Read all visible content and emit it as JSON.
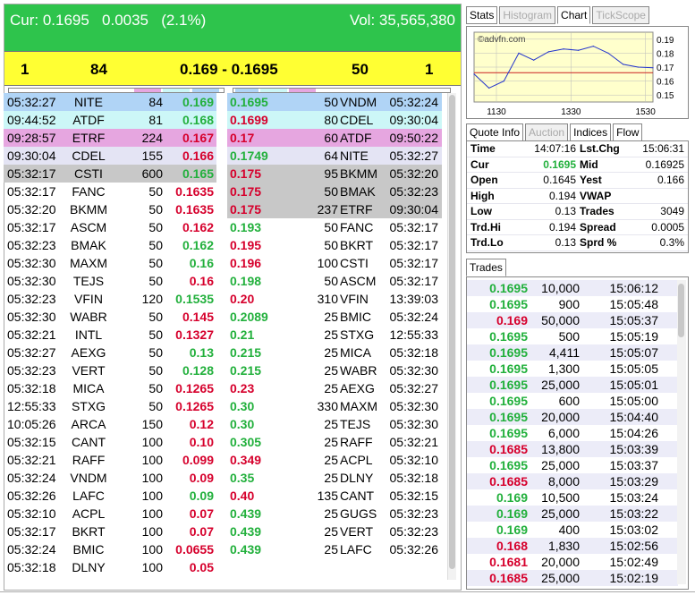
{
  "header": {
    "cur_label": "Cur: 0.1695",
    "change": "0.0035",
    "change_pct": "(2.1%)",
    "volume": "Vol: 35,565,380"
  },
  "best": {
    "bid_count": "1",
    "bid_size": "84",
    "spread": "0.169 - 0.1695",
    "ask_size": "50",
    "ask_count": "1"
  },
  "colors": {
    "header_bg": "#2ec44c",
    "best_bg": "#ffff33",
    "up": "#22b03c",
    "down": "#d6002c",
    "level1": "#b0d4f6",
    "level2": "#ccf7f7",
    "level3": "#e6a6e0",
    "level4": "#e4e4f4",
    "level5": "#c8c8c8"
  },
  "bids": [
    {
      "time": "05:32:27",
      "mm": "NITE",
      "size": "84",
      "price": "0.169",
      "dir": "g",
      "lvl": "level1"
    },
    {
      "time": "09:44:52",
      "mm": "ATDF",
      "size": "81",
      "price": "0.168",
      "dir": "g",
      "lvl": "level2"
    },
    {
      "time": "09:28:57",
      "mm": "ETRF",
      "size": "224",
      "price": "0.167",
      "dir": "r",
      "lvl": "level3"
    },
    {
      "time": "09:30:04",
      "mm": "CDEL",
      "size": "155",
      "price": "0.166",
      "dir": "r",
      "lvl": "level4"
    },
    {
      "time": "05:32:17",
      "mm": "CSTI",
      "size": "600",
      "price": "0.165",
      "dir": "g",
      "lvl": "level5"
    },
    {
      "time": "05:32:17",
      "mm": "FANC",
      "size": "50",
      "price": "0.1635",
      "dir": "r",
      "lvl": ""
    },
    {
      "time": "05:32:20",
      "mm": "BKMM",
      "size": "50",
      "price": "0.1635",
      "dir": "r",
      "lvl": ""
    },
    {
      "time": "05:32:17",
      "mm": "ASCM",
      "size": "50",
      "price": "0.162",
      "dir": "r",
      "lvl": ""
    },
    {
      "time": "05:32:23",
      "mm": "BMAK",
      "size": "50",
      "price": "0.162",
      "dir": "g",
      "lvl": ""
    },
    {
      "time": "05:32:30",
      "mm": "MAXM",
      "size": "50",
      "price": "0.16",
      "dir": "g",
      "lvl": ""
    },
    {
      "time": "05:32:30",
      "mm": "TEJS",
      "size": "50",
      "price": "0.16",
      "dir": "r",
      "lvl": ""
    },
    {
      "time": "05:32:23",
      "mm": "VFIN",
      "size": "120",
      "price": "0.1535",
      "dir": "g",
      "lvl": ""
    },
    {
      "time": "05:32:30",
      "mm": "WABR",
      "size": "50",
      "price": "0.145",
      "dir": "r",
      "lvl": ""
    },
    {
      "time": "05:32:21",
      "mm": "INTL",
      "size": "50",
      "price": "0.1327",
      "dir": "r",
      "lvl": ""
    },
    {
      "time": "05:32:27",
      "mm": "AEXG",
      "size": "50",
      "price": "0.13",
      "dir": "g",
      "lvl": ""
    },
    {
      "time": "05:32:23",
      "mm": "VERT",
      "size": "50",
      "price": "0.128",
      "dir": "g",
      "lvl": ""
    },
    {
      "time": "05:32:18",
      "mm": "MICA",
      "size": "50",
      "price": "0.1265",
      "dir": "r",
      "lvl": ""
    },
    {
      "time": "12:55:33",
      "mm": "STXG",
      "size": "50",
      "price": "0.1265",
      "dir": "r",
      "lvl": ""
    },
    {
      "time": "10:05:26",
      "mm": "ARCA",
      "size": "150",
      "price": "0.12",
      "dir": "r",
      "lvl": ""
    },
    {
      "time": "05:32:15",
      "mm": "CANT",
      "size": "100",
      "price": "0.10",
      "dir": "r",
      "lvl": ""
    },
    {
      "time": "05:32:21",
      "mm": "RAFF",
      "size": "100",
      "price": "0.099",
      "dir": "r",
      "lvl": ""
    },
    {
      "time": "05:32:24",
      "mm": "VNDM",
      "size": "100",
      "price": "0.09",
      "dir": "r",
      "lvl": ""
    },
    {
      "time": "05:32:26",
      "mm": "LAFC",
      "size": "100",
      "price": "0.09",
      "dir": "g",
      "lvl": ""
    },
    {
      "time": "05:32:10",
      "mm": "ACPL",
      "size": "100",
      "price": "0.07",
      "dir": "r",
      "lvl": ""
    },
    {
      "time": "05:32:17",
      "mm": "BKRT",
      "size": "100",
      "price": "0.07",
      "dir": "r",
      "lvl": ""
    },
    {
      "time": "05:32:24",
      "mm": "BMIC",
      "size": "100",
      "price": "0.0655",
      "dir": "r",
      "lvl": ""
    },
    {
      "time": "05:32:18",
      "mm": "DLNY",
      "size": "100",
      "price": "0.05",
      "dir": "r",
      "lvl": ""
    }
  ],
  "asks": [
    {
      "price": "0.1695",
      "size": "50",
      "mm": "VNDM",
      "time": "05:32:24",
      "dir": "g",
      "lvl": "level1"
    },
    {
      "price": "0.1699",
      "size": "80",
      "mm": "CDEL",
      "time": "09:30:04",
      "dir": "r",
      "lvl": "level2"
    },
    {
      "price": "0.17",
      "size": "60",
      "mm": "ATDF",
      "time": "09:50:22",
      "dir": "r",
      "lvl": "level3"
    },
    {
      "price": "0.1749",
      "size": "64",
      "mm": "NITE",
      "time": "05:32:27",
      "dir": "g",
      "lvl": "level4"
    },
    {
      "price": "0.175",
      "size": "95",
      "mm": "BKMM",
      "time": "05:32:20",
      "dir": "r",
      "lvl": "level5"
    },
    {
      "price": "0.175",
      "size": "50",
      "mm": "BMAK",
      "time": "05:32:23",
      "dir": "r",
      "lvl": "level5"
    },
    {
      "price": "0.175",
      "size": "237",
      "mm": "ETRF",
      "time": "09:30:04",
      "dir": "r",
      "lvl": "level5"
    },
    {
      "price": "0.193",
      "size": "50",
      "mm": "FANC",
      "time": "05:32:17",
      "dir": "g",
      "lvl": ""
    },
    {
      "price": "0.195",
      "size": "50",
      "mm": "BKRT",
      "time": "05:32:17",
      "dir": "r",
      "lvl": ""
    },
    {
      "price": "0.196",
      "size": "100",
      "mm": "CSTI",
      "time": "05:32:17",
      "dir": "r",
      "lvl": ""
    },
    {
      "price": "0.198",
      "size": "50",
      "mm": "ASCM",
      "time": "05:32:17",
      "dir": "g",
      "lvl": ""
    },
    {
      "price": "0.20",
      "size": "310",
      "mm": "VFIN",
      "time": "13:39:03",
      "dir": "r",
      "lvl": ""
    },
    {
      "price": "0.2089",
      "size": "25",
      "mm": "BMIC",
      "time": "05:32:24",
      "dir": "g",
      "lvl": ""
    },
    {
      "price": "0.21",
      "size": "25",
      "mm": "STXG",
      "time": "12:55:33",
      "dir": "g",
      "lvl": ""
    },
    {
      "price": "0.215",
      "size": "25",
      "mm": "MICA",
      "time": "05:32:18",
      "dir": "g",
      "lvl": ""
    },
    {
      "price": "0.215",
      "size": "25",
      "mm": "WABR",
      "time": "05:32:30",
      "dir": "g",
      "lvl": ""
    },
    {
      "price": "0.23",
      "size": "25",
      "mm": "AEXG",
      "time": "05:32:27",
      "dir": "r",
      "lvl": ""
    },
    {
      "price": "0.30",
      "size": "330",
      "mm": "MAXM",
      "time": "05:32:30",
      "dir": "g",
      "lvl": ""
    },
    {
      "price": "0.30",
      "size": "25",
      "mm": "TEJS",
      "time": "05:32:30",
      "dir": "g",
      "lvl": ""
    },
    {
      "price": "0.305",
      "size": "25",
      "mm": "RAFF",
      "time": "05:32:21",
      "dir": "g",
      "lvl": ""
    },
    {
      "price": "0.349",
      "size": "25",
      "mm": "ACPL",
      "time": "05:32:10",
      "dir": "r",
      "lvl": ""
    },
    {
      "price": "0.35",
      "size": "25",
      "mm": "DLNY",
      "time": "05:32:18",
      "dir": "g",
      "lvl": ""
    },
    {
      "price": "0.40",
      "size": "135",
      "mm": "CANT",
      "time": "05:32:15",
      "dir": "r",
      "lvl": ""
    },
    {
      "price": "0.439",
      "size": "25",
      "mm": "GUGS",
      "time": "05:32:23",
      "dir": "g",
      "lvl": ""
    },
    {
      "price": "0.439",
      "size": "25",
      "mm": "VERT",
      "time": "05:32:23",
      "dir": "g",
      "lvl": ""
    },
    {
      "price": "0.439",
      "size": "25",
      "mm": "LAFC",
      "time": "05:32:26",
      "dir": "g",
      "lvl": ""
    }
  ],
  "right_tabs": [
    {
      "label": "Stats",
      "state": "normal"
    },
    {
      "label": "Histogram",
      "state": "dis"
    },
    {
      "label": "Chart",
      "state": "act"
    },
    {
      "label": "TickScope",
      "state": "dis"
    }
  ],
  "chart": {
    "watermark": "©advfn.com",
    "y_ticks": [
      "0.19",
      "0.18",
      "0.17",
      "0.16",
      "0.15"
    ],
    "x_ticks": [
      "1130",
      "1330",
      "1530"
    ],
    "reference_line": 0.166,
    "colors": {
      "line": "#2233cc",
      "bg": "#ffffcc",
      "ref": "#cc2222",
      "grid": "#bbbbbb"
    }
  },
  "chart_data": {
    "type": "line",
    "x": [
      "0930",
      "1000",
      "1030",
      "1100",
      "1130",
      "1200",
      "1230",
      "1300",
      "1330",
      "1400",
      "1430",
      "1500",
      "1530"
    ],
    "series": [
      {
        "values": [
          0.165,
          0.155,
          0.16,
          0.18,
          0.175,
          0.181,
          0.183,
          0.182,
          0.185,
          0.18,
          0.172,
          0.17,
          0.1695
        ]
      }
    ],
    "ylim": [
      0.145,
      0.195
    ],
    "xlabel": "",
    "ylabel": ""
  },
  "quote_tabs": [
    {
      "label": "Quote Info",
      "state": "act"
    },
    {
      "label": "Auction",
      "state": "dis"
    },
    {
      "label": "Indices",
      "state": "normal"
    },
    {
      "label": "Flow",
      "state": "normal"
    }
  ],
  "quote": [
    {
      "l1": "Time",
      "v1": "14:07:16",
      "l2": "Lst.Chg",
      "v2": "15:06:31",
      "c1": ""
    },
    {
      "l1": "Cur",
      "v1": "0.1695",
      "l2": "Mid",
      "v2": "0.16925",
      "c1": "g"
    },
    {
      "l1": "Open",
      "v1": "0.1645",
      "l2": "Yest",
      "v2": "0.166",
      "c1": ""
    },
    {
      "l1": "High",
      "v1": "0.194",
      "l2": "VWAP",
      "v2": "",
      "c1": ""
    },
    {
      "l1": "Low",
      "v1": "0.13",
      "l2": "Trades",
      "v2": "3049",
      "c1": ""
    },
    {
      "l1": "Trd.Hi",
      "v1": "0.194",
      "l2": "Spread",
      "v2": "0.0005",
      "c1": ""
    },
    {
      "l1": "Trd.Lo",
      "v1": "0.13",
      "l2": "Sprd %",
      "v2": "0.3%",
      "c1": ""
    }
  ],
  "trades_tab": "Trades",
  "trades": [
    {
      "price": "0.1695",
      "size": "10,000",
      "time": "15:06:12",
      "dir": "g"
    },
    {
      "price": "0.1695",
      "size": "900",
      "time": "15:05:48",
      "dir": "g"
    },
    {
      "price": "0.169",
      "size": "50,000",
      "time": "15:05:37",
      "dir": "r"
    },
    {
      "price": "0.1695",
      "size": "500",
      "time": "15:05:19",
      "dir": "g"
    },
    {
      "price": "0.1695",
      "size": "4,411",
      "time": "15:05:07",
      "dir": "g"
    },
    {
      "price": "0.1695",
      "size": "1,300",
      "time": "15:05:05",
      "dir": "g"
    },
    {
      "price": "0.1695",
      "size": "25,000",
      "time": "15:05:01",
      "dir": "g"
    },
    {
      "price": "0.1695",
      "size": "600",
      "time": "15:05:00",
      "dir": "g"
    },
    {
      "price": "0.1695",
      "size": "20,000",
      "time": "15:04:40",
      "dir": "g"
    },
    {
      "price": "0.1695",
      "size": "6,000",
      "time": "15:04:26",
      "dir": "g"
    },
    {
      "price": "0.1685",
      "size": "13,800",
      "time": "15:03:39",
      "dir": "r"
    },
    {
      "price": "0.1695",
      "size": "25,000",
      "time": "15:03:37",
      "dir": "g"
    },
    {
      "price": "0.1685",
      "size": "8,000",
      "time": "15:03:29",
      "dir": "r"
    },
    {
      "price": "0.169",
      "size": "10,500",
      "time": "15:03:24",
      "dir": "g"
    },
    {
      "price": "0.169",
      "size": "25,000",
      "time": "15:03:22",
      "dir": "g"
    },
    {
      "price": "0.169",
      "size": "400",
      "time": "15:03:02",
      "dir": "g"
    },
    {
      "price": "0.168",
      "size": "1,830",
      "time": "15:02:56",
      "dir": "r"
    },
    {
      "price": "0.1681",
      "size": "20,000",
      "time": "15:02:49",
      "dir": "r"
    },
    {
      "price": "0.1685",
      "size": "25,000",
      "time": "15:02:19",
      "dir": "r"
    }
  ]
}
